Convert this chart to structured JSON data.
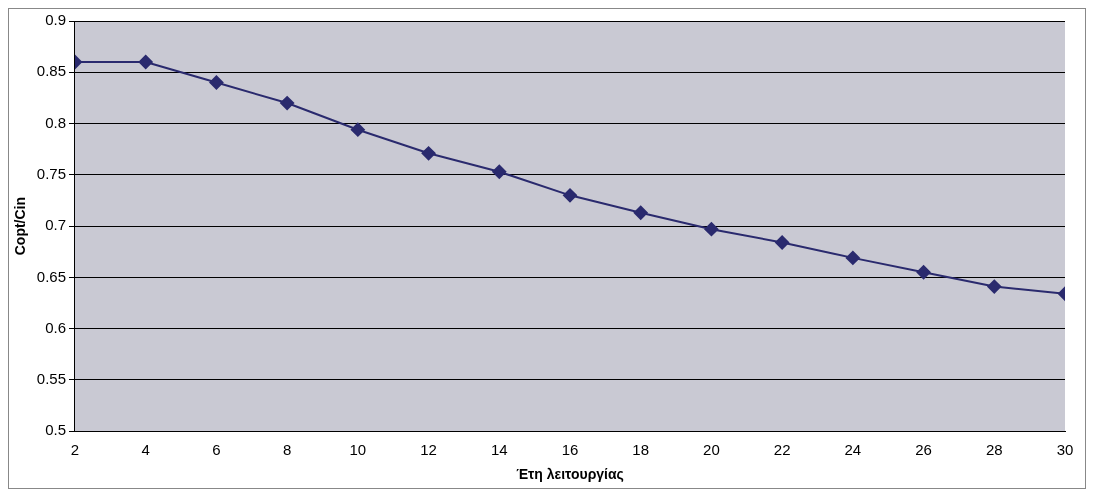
{
  "chart_data": {
    "type": "line",
    "xlabel": "Έτη λειτουργίας",
    "ylabel": "Copt/Cin",
    "x": [
      2,
      4,
      6,
      8,
      10,
      12,
      14,
      16,
      18,
      20,
      22,
      24,
      26,
      28,
      30
    ],
    "series": [
      {
        "color": "#2a2a6e",
        "values": [
          0.86,
          0.86,
          0.84,
          0.82,
          0.794,
          0.771,
          0.753,
          0.73,
          0.713,
          0.697,
          0.684,
          0.669,
          0.655,
          0.641,
          0.634
        ]
      }
    ],
    "xlim": [
      2,
      30
    ],
    "xticks": [
      2,
      4,
      6,
      8,
      10,
      12,
      14,
      16,
      18,
      20,
      22,
      24,
      26,
      28,
      30
    ],
    "ylim": [
      0.5,
      0.9
    ],
    "yticks": [
      0.5,
      0.55,
      0.6,
      0.65,
      0.7,
      0.75,
      0.8,
      0.85,
      0.9
    ],
    "grid": "y",
    "legend": false,
    "marker": "diamond",
    "line_style": "solid"
  }
}
